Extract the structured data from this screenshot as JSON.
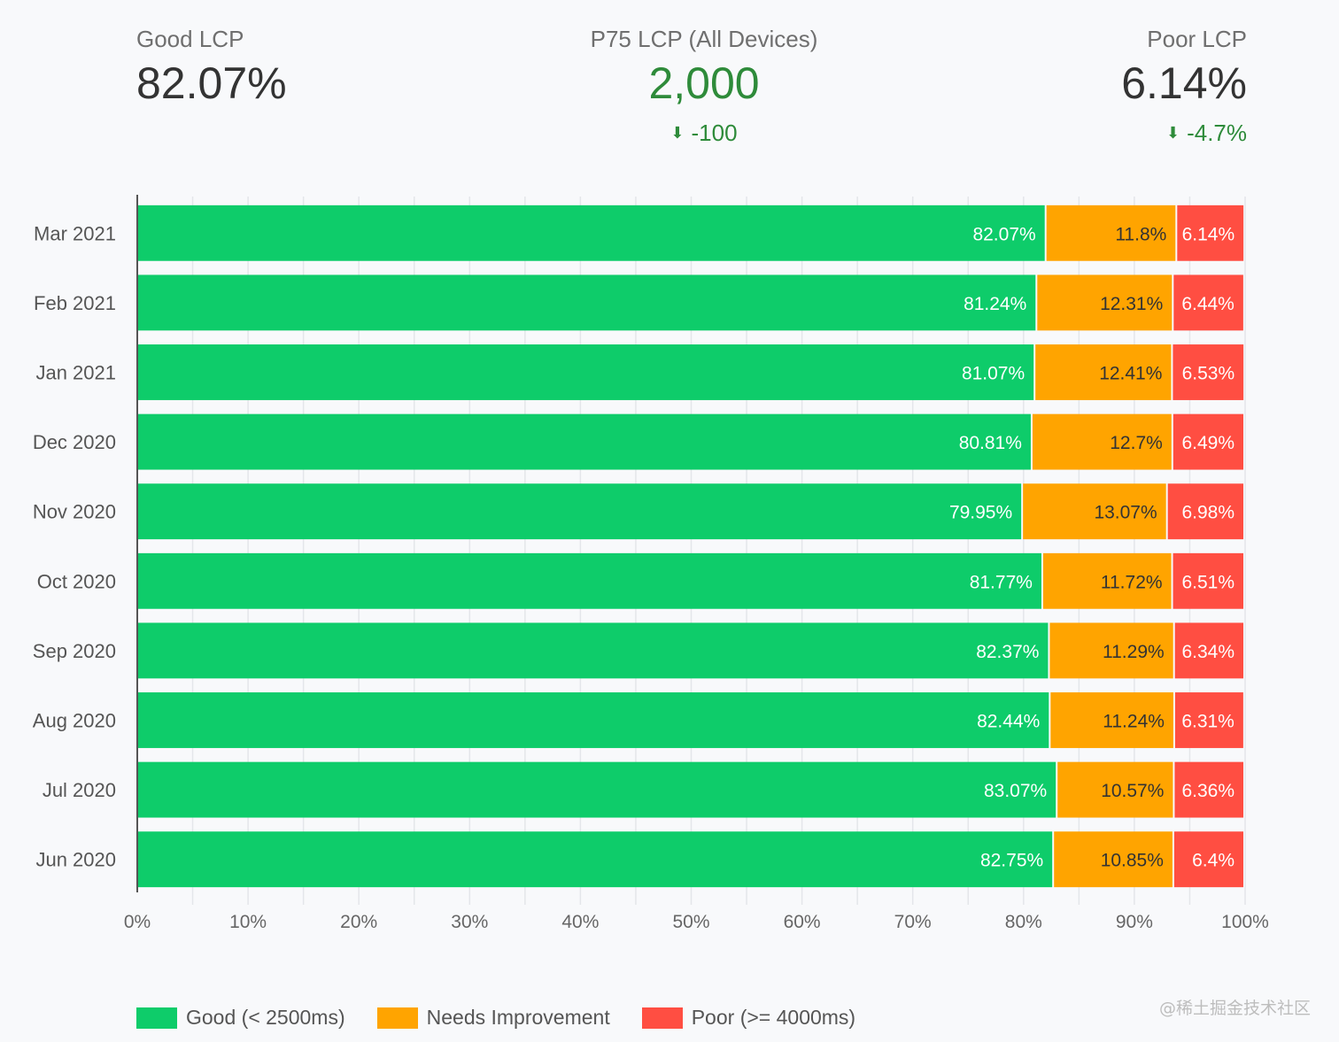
{
  "kpis": {
    "good": {
      "label": "Good LCP",
      "value": "82.07%"
    },
    "p75": {
      "label": "P75 LCP (All Devices)",
      "value": "2,000",
      "delta": "-100",
      "delta_icon": "arrow-down-icon"
    },
    "poor": {
      "label": "Poor LCP",
      "value": "6.14%",
      "delta": "-4.7%",
      "delta_icon": "arrow-down-icon"
    }
  },
  "colors": {
    "good": "#0ecc6a",
    "needs_improvement": "#ffa400",
    "poor": "#ff4e42",
    "positive_delta": "#2e8b3a"
  },
  "chart_data": {
    "type": "bar",
    "orientation": "horizontal",
    "stacked": true,
    "title": "",
    "xlabel": "",
    "ylabel": "",
    "xlim": [
      0,
      100
    ],
    "x_ticks": [
      "0%",
      "10%",
      "20%",
      "30%",
      "40%",
      "50%",
      "60%",
      "70%",
      "80%",
      "90%",
      "100%"
    ],
    "grid": true,
    "legend_position": "bottom-left",
    "categories": [
      "Mar 2021",
      "Feb 2021",
      "Jan 2021",
      "Dec 2020",
      "Nov 2020",
      "Oct 2020",
      "Sep 2020",
      "Aug 2020",
      "Jul 2020",
      "Jun 2020"
    ],
    "series": [
      {
        "name": "Good (< 2500ms)",
        "key": "good",
        "values": [
          82.07,
          81.24,
          81.07,
          80.81,
          79.95,
          81.77,
          82.37,
          82.44,
          83.07,
          82.75
        ],
        "labels": [
          "82.07%",
          "81.24%",
          "81.07%",
          "80.81%",
          "79.95%",
          "81.77%",
          "82.37%",
          "82.44%",
          "83.07%",
          "82.75%"
        ]
      },
      {
        "name": "Needs Improvement",
        "key": "needs_improvement",
        "values": [
          11.8,
          12.31,
          12.41,
          12.7,
          13.07,
          11.72,
          11.29,
          11.24,
          10.57,
          10.85
        ],
        "labels": [
          "11.8%",
          "12.31%",
          "12.41%",
          "12.7%",
          "13.07%",
          "11.72%",
          "11.29%",
          "11.24%",
          "10.57%",
          "10.85%"
        ]
      },
      {
        "name": "Poor (>= 4000ms)",
        "key": "poor",
        "values": [
          6.14,
          6.44,
          6.53,
          6.49,
          6.98,
          6.51,
          6.34,
          6.31,
          6.36,
          6.4
        ],
        "labels": [
          "6.14%",
          "6.44%",
          "6.53%",
          "6.49%",
          "6.98%",
          "6.51%",
          "6.34%",
          "6.31%",
          "6.36%",
          "6.4%"
        ]
      }
    ]
  },
  "legend": [
    {
      "label": "Good (< 2500ms)",
      "key": "good"
    },
    {
      "label": "Needs Improvement",
      "key": "needs_improvement"
    },
    {
      "label": "Poor (>= 4000ms)",
      "key": "poor"
    }
  ],
  "watermark": "@稀土掘金技术社区"
}
